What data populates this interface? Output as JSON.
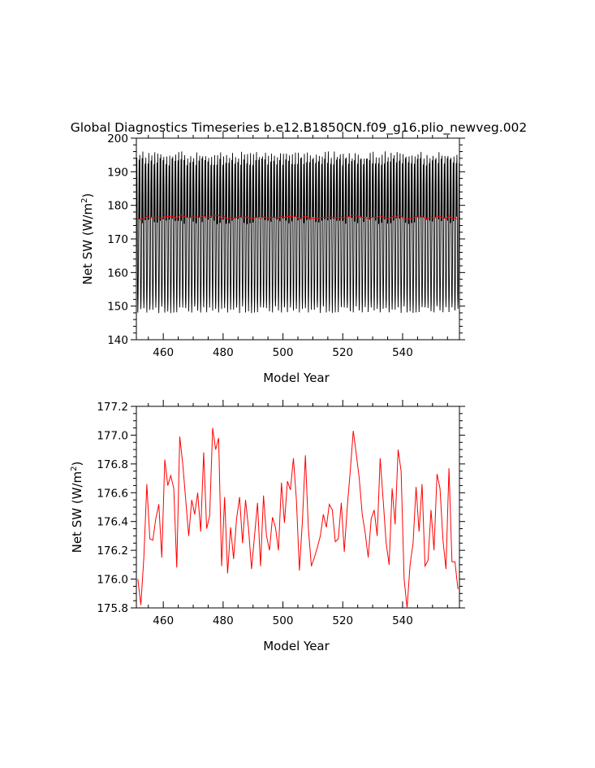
{
  "figure": {
    "title": "Global Diagnostics Timeseries b.e12.B1850CN.f09_g16.plio_newveg.002"
  },
  "chart_data": [
    {
      "type": "line",
      "xlabel": "Model Year",
      "ylabel": "Net SW (W/m",
      "ylabel_sup": "2",
      "ylabel_end": ")",
      "xlim": [
        451,
        559
      ],
      "ylim": [
        140,
        200
      ],
      "xticks": [
        460,
        480,
        500,
        520,
        540
      ],
      "yticks": [
        140,
        150,
        160,
        170,
        180,
        190,
        200
      ],
      "ytick_labels": [
        "140",
        "150",
        "160",
        "170",
        "180",
        "190",
        "200"
      ],
      "monthly": {
        "color": "#000000",
        "annual_cycle": [
          175.5,
          190.5,
          195.0,
          184.5,
          167.0,
          153.0,
          149.0,
          152.0,
          160.5,
          173.5,
          185.5,
          193.0
        ],
        "start_year": 451,
        "end_year": 559,
        "note_values_approx": true
      },
      "annual_mean": {
        "color": "#ff0000"
      }
    },
    {
      "type": "line",
      "xlabel": "Model Year",
      "ylabel": "Net SW (W/m",
      "ylabel_sup": "2",
      "ylabel_end": ")",
      "xlim": [
        451,
        559
      ],
      "ylim": [
        175.8,
        177.2
      ],
      "xticks": [
        460,
        480,
        500,
        520,
        540
      ],
      "yticks": [
        175.8,
        176.0,
        176.2,
        176.4,
        176.6,
        176.8,
        177.0,
        177.2
      ],
      "ytick_labels": [
        "175.8",
        "176.0",
        "176.2",
        "176.4",
        "176.6",
        "176.8",
        "177.0",
        "177.2"
      ],
      "series": [
        {
          "color": "#ff0000",
          "x": [
            451,
            452,
            453,
            454,
            455,
            456,
            457,
            458,
            459,
            460,
            461,
            462,
            463,
            464,
            465,
            466,
            467,
            468,
            469,
            470,
            471,
            472,
            473,
            474,
            475,
            476,
            477,
            478,
            479,
            480,
            481,
            482,
            483,
            484,
            485,
            486,
            487,
            488,
            489,
            490,
            491,
            492,
            493,
            494,
            495,
            496,
            497,
            498,
            499,
            500,
            501,
            502,
            503,
            504,
            505,
            506,
            507,
            508,
            509,
            510,
            511,
            512,
            513,
            514,
            515,
            516,
            517,
            518,
            519,
            520,
            521,
            522,
            523,
            524,
            525,
            526,
            527,
            528,
            529,
            530,
            531,
            532,
            533,
            534,
            535,
            536,
            537,
            538,
            539,
            540,
            541,
            542,
            543,
            544,
            545,
            546,
            547,
            548,
            549,
            550,
            551,
            552,
            553,
            554,
            555,
            556,
            557,
            558
          ],
          "values": [
            176.0,
            175.82,
            176.15,
            176.66,
            176.28,
            176.27,
            176.42,
            176.52,
            176.15,
            176.83,
            176.65,
            176.72,
            176.63,
            176.08,
            176.99,
            176.8,
            176.55,
            176.3,
            176.55,
            176.45,
            176.6,
            176.33,
            176.88,
            176.35,
            176.44,
            177.05,
            176.9,
            176.98,
            176.09,
            176.57,
            176.04,
            176.36,
            176.14,
            176.42,
            176.57,
            176.25,
            176.55,
            176.35,
            176.07,
            176.3,
            176.53,
            176.09,
            176.58,
            176.3,
            176.2,
            176.43,
            176.36,
            176.2,
            176.67,
            176.39,
            176.68,
            176.62,
            176.84,
            176.55,
            176.06,
            176.4,
            176.86,
            176.35,
            176.09,
            176.15,
            176.22,
            176.3,
            176.45,
            176.36,
            176.52,
            176.48,
            176.26,
            176.28,
            176.53,
            176.19,
            176.5,
            176.75,
            177.03,
            176.87,
            176.7,
            176.45,
            176.32,
            176.15,
            176.42,
            176.48,
            176.3,
            176.84,
            176.55,
            176.25,
            176.1,
            176.63,
            176.38,
            176.9,
            176.75,
            176.0,
            175.8,
            176.1,
            176.25,
            176.64,
            176.33,
            176.66,
            176.09,
            176.13,
            176.48,
            176.2,
            176.73,
            176.63,
            176.27,
            176.07,
            176.77,
            176.12,
            176.12,
            175.93
          ]
        }
      ]
    }
  ]
}
